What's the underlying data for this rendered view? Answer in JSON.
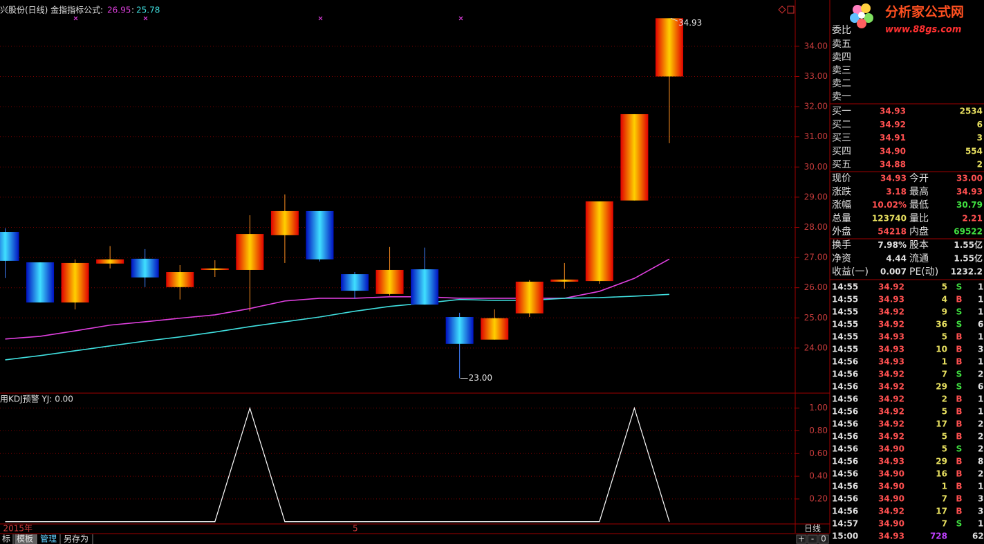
{
  "chart_data": [
    {
      "type": "candlestick",
      "title": "兴股份(日线) 金指指标公式",
      "value_separator": ":",
      "categories": [
        "2015年",
        null,
        null,
        null,
        null,
        null,
        null,
        null,
        null,
        null,
        "5",
        null,
        null,
        null,
        null,
        null,
        null,
        null,
        null,
        null
      ],
      "open": [
        27.85,
        26.84,
        25.51,
        26.8,
        26.96,
        26.02,
        26.59,
        26.59,
        27.74,
        28.54,
        26.45,
        25.79,
        26.61,
        25.03,
        24.28,
        25.15,
        26.2,
        26.22,
        28.89,
        33.0
      ],
      "high": [
        27.97,
        26.84,
        26.94,
        27.38,
        27.28,
        26.75,
        26.91,
        28.4,
        29.09,
        28.54,
        26.52,
        27.35,
        27.33,
        25.17,
        25.28,
        26.25,
        26.82,
        28.86,
        31.75,
        34.93
      ],
      "low": [
        26.32,
        25.51,
        25.28,
        26.64,
        26.02,
        25.61,
        26.36,
        25.22,
        26.82,
        26.87,
        25.63,
        25.74,
        25.44,
        23.0,
        24.28,
        25.03,
        25.97,
        26.13,
        28.89,
        30.79
      ],
      "close": [
        26.89,
        25.51,
        26.82,
        26.94,
        26.34,
        26.52,
        26.64,
        27.78,
        28.54,
        26.94,
        25.9,
        26.59,
        25.44,
        24.14,
        24.99,
        26.2,
        26.27,
        28.86,
        31.75,
        34.93
      ],
      "high_labels": [
        null,
        null,
        null,
        null,
        null,
        null,
        null,
        null,
        null,
        null,
        null,
        null,
        null,
        null,
        null,
        null,
        null,
        null,
        null,
        "34.93"
      ],
      "low_labels": [
        null,
        null,
        null,
        null,
        null,
        null,
        null,
        null,
        null,
        null,
        null,
        null,
        null,
        "23.00",
        null,
        null,
        null,
        null,
        null,
        null
      ],
      "series": [
        {
          "color": "#e040e0",
          "values": [
            24.3,
            24.39,
            24.57,
            24.76,
            24.87,
            24.99,
            25.1,
            25.31,
            25.56,
            25.65,
            25.65,
            25.7,
            25.7,
            25.65,
            25.65,
            25.65,
            25.65,
            25.88,
            26.31,
            26.95
          ]
        },
        {
          "color": "#40e0e0",
          "values": [
            23.61,
            23.75,
            23.91,
            24.07,
            24.23,
            24.37,
            24.53,
            24.71,
            24.87,
            25.03,
            25.22,
            25.38,
            25.49,
            25.61,
            25.58,
            25.58,
            25.65,
            25.67,
            25.72,
            25.78
          ]
        }
      ],
      "ylim": [
        22.53,
        35.35
      ],
      "yticks": [
        {
          "value": 24,
          "label": "24.00"
        },
        {
          "value": 25,
          "label": "25.00"
        },
        {
          "value": 26,
          "label": "26.00"
        },
        {
          "value": 27,
          "label": "27.00"
        },
        {
          "value": 28,
          "label": "28.00"
        },
        {
          "value": 29,
          "label": "29.00"
        },
        {
          "value": 30,
          "label": "30.00"
        },
        {
          "value": 31,
          "label": "31.00"
        },
        {
          "value": 32,
          "label": "32.00"
        },
        {
          "value": 33,
          "label": "33.00"
        },
        {
          "value": 34,
          "label": "34.00"
        }
      ],
      "grid": true
    },
    {
      "type": "line",
      "title": "用KDJ预警  YJ: 0.00",
      "series": [
        {
          "color": "#ffffff",
          "values": [
            0,
            0,
            0,
            0,
            0,
            0,
            0,
            1,
            0,
            0,
            0,
            0,
            0,
            0,
            0,
            0,
            0,
            0,
            1,
            0
          ]
        }
      ],
      "ylim": [
        -0.02,
        1.12
      ],
      "yticks": [
        {
          "value": 0.2,
          "label": "0.20"
        },
        {
          "value": 0.4,
          "label": "0.40"
        },
        {
          "value": 0.6,
          "label": "0.60"
        },
        {
          "value": 0.8,
          "label": "0.80"
        },
        {
          "value": 1,
          "label": "1.00"
        }
      ],
      "grid": true
    }
  ],
  "logo": {
    "name": "分析家公式网",
    "url": "www.88gs.com"
  },
  "order_book": {
    "imbalance_label": "委比",
    "asks": [
      "卖五",
      "卖四",
      "卖三",
      "卖二",
      "卖一"
    ],
    "bids": [
      {
        "label": "买一",
        "price": "34.93",
        "volume": "2534"
      },
      {
        "label": "买二",
        "price": "34.92",
        "volume": "6"
      },
      {
        "label": "买三",
        "price": "34.91",
        "volume": "3"
      },
      {
        "label": "买四",
        "price": "34.90",
        "volume": "554"
      },
      {
        "label": "买五",
        "price": "34.88",
        "volume": "2"
      }
    ]
  },
  "stats": [
    [
      {
        "label": "现价",
        "value": "34.93",
        "color": "#ff5050"
      },
      {
        "label": "今开",
        "value": "33.00",
        "color": "#ff5050"
      }
    ],
    [
      {
        "label": "涨跌",
        "value": "3.18",
        "color": "#ff5050"
      },
      {
        "label": "最高",
        "value": "34.93",
        "color": "#ff5050"
      }
    ],
    [
      {
        "label": "涨幅",
        "value": "10.02%",
        "color": "#ff5050"
      },
      {
        "label": "最低",
        "value": "30.79",
        "color": "#40e040"
      }
    ],
    [
      {
        "label": "总量",
        "value": "123740",
        "color": "#e8e060"
      },
      {
        "label": "量比",
        "value": "2.21",
        "color": "#ff5050"
      }
    ],
    [
      {
        "label": "外盘",
        "value": "54218",
        "color": "#ff5050"
      },
      {
        "label": "内盘",
        "value": "69522",
        "color": "#40e040"
      }
    ],
    [
      {
        "label": "换手",
        "value": "7.98%",
        "color": "#e0e0e0"
      },
      {
        "label": "股本",
        "value": "1.55亿",
        "color": "#e0e0e0"
      }
    ],
    [
      {
        "label": "净资",
        "value": "4.44",
        "color": "#e0e0e0"
      },
      {
        "label": "流通",
        "value": "1.55亿",
        "color": "#e0e0e0"
      }
    ],
    [
      {
        "label": "收益(一)",
        "value": "0.007",
        "color": "#e0e0e0"
      },
      {
        "label": "PE(动)",
        "value": "1232.2",
        "color": "#e0e0e0"
      }
    ]
  ],
  "ticks": [
    {
      "time": "14:55",
      "price": "34.92",
      "volume": "5",
      "side": "S",
      "count": "1"
    },
    {
      "time": "14:55",
      "price": "34.93",
      "volume": "4",
      "side": "B",
      "count": "1"
    },
    {
      "time": "14:55",
      "price": "34.92",
      "volume": "9",
      "side": "S",
      "count": "1"
    },
    {
      "time": "14:55",
      "price": "34.92",
      "volume": "36",
      "side": "S",
      "count": "6"
    },
    {
      "time": "14:55",
      "price": "34.93",
      "volume": "5",
      "side": "B",
      "count": "1"
    },
    {
      "time": "14:55",
      "price": "34.93",
      "volume": "10",
      "side": "B",
      "count": "3"
    },
    {
      "time": "14:56",
      "price": "34.93",
      "volume": "1",
      "side": "B",
      "count": "1"
    },
    {
      "time": "14:56",
      "price": "34.92",
      "volume": "7",
      "side": "S",
      "count": "2"
    },
    {
      "time": "14:56",
      "price": "34.92",
      "volume": "29",
      "side": "S",
      "count": "6"
    },
    {
      "time": "14:56",
      "price": "34.92",
      "volume": "2",
      "side": "B",
      "count": "1"
    },
    {
      "time": "14:56",
      "price": "34.92",
      "volume": "5",
      "side": "B",
      "count": "1"
    },
    {
      "time": "14:56",
      "price": "34.92",
      "volume": "17",
      "side": "B",
      "count": "2"
    },
    {
      "time": "14:56",
      "price": "34.92",
      "volume": "5",
      "side": "B",
      "count": "2"
    },
    {
      "time": "14:56",
      "price": "34.90",
      "volume": "5",
      "side": "S",
      "count": "2"
    },
    {
      "time": "14:56",
      "price": "34.93",
      "volume": "29",
      "side": "B",
      "count": "8"
    },
    {
      "time": "14:56",
      "price": "34.90",
      "volume": "16",
      "side": "B",
      "count": "2"
    },
    {
      "time": "14:56",
      "price": "34.90",
      "volume": "1",
      "side": "B",
      "count": "1"
    },
    {
      "time": "14:56",
      "price": "34.90",
      "volume": "7",
      "side": "B",
      "count": "3"
    },
    {
      "time": "14:56",
      "price": "34.92",
      "volume": "17",
      "side": "B",
      "count": "3"
    },
    {
      "time": "14:57",
      "price": "34.90",
      "volume": "7",
      "side": "S",
      "count": "1"
    },
    {
      "time": "15:00",
      "price": "34.93",
      "volume": "728",
      "count": "62"
    }
  ],
  "footer": {
    "period": "日线",
    "tabs": [
      "标",
      "模板",
      "管理",
      "另存为"
    ],
    "zoom": [
      "+",
      "-",
      "0"
    ]
  }
}
